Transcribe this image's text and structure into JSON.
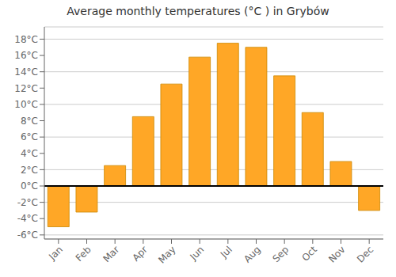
{
  "chart_data": {
    "type": "bar",
    "title": "Average monthly temperatures (°C ) in Grybów",
    "categories": [
      "Jan",
      "Feb",
      "Mar",
      "Apr",
      "May",
      "Jun",
      "Jul",
      "Aug",
      "Sep",
      "Oct",
      "Nov",
      "Dec"
    ],
    "values": [
      -5.0,
      -3.2,
      2.5,
      8.5,
      12.5,
      15.8,
      17.5,
      17.0,
      13.5,
      9.0,
      3.0,
      -3.0
    ],
    "color": "#FFA726",
    "ylim": [
      -6.5,
      19.5
    ],
    "yticks": [
      {
        "value": -6,
        "label": "-6°C"
      },
      {
        "value": -4,
        "label": "-4°C"
      },
      {
        "value": -2,
        "label": "-2°C"
      },
      {
        "value": 0,
        "label": "0°C"
      },
      {
        "value": 2,
        "label": "2°C"
      },
      {
        "value": 4,
        "label": "4°C"
      },
      {
        "value": 6,
        "label": "6°C"
      },
      {
        "value": 8,
        "label": "8°C"
      },
      {
        "value": 10,
        "label": "10°C"
      },
      {
        "value": 12,
        "label": "12°C"
      },
      {
        "value": 14,
        "label": "14°C"
      },
      {
        "value": 16,
        "label": "16°C"
      },
      {
        "value": 18,
        "label": "18°C"
      }
    ],
    "grid": true
  }
}
